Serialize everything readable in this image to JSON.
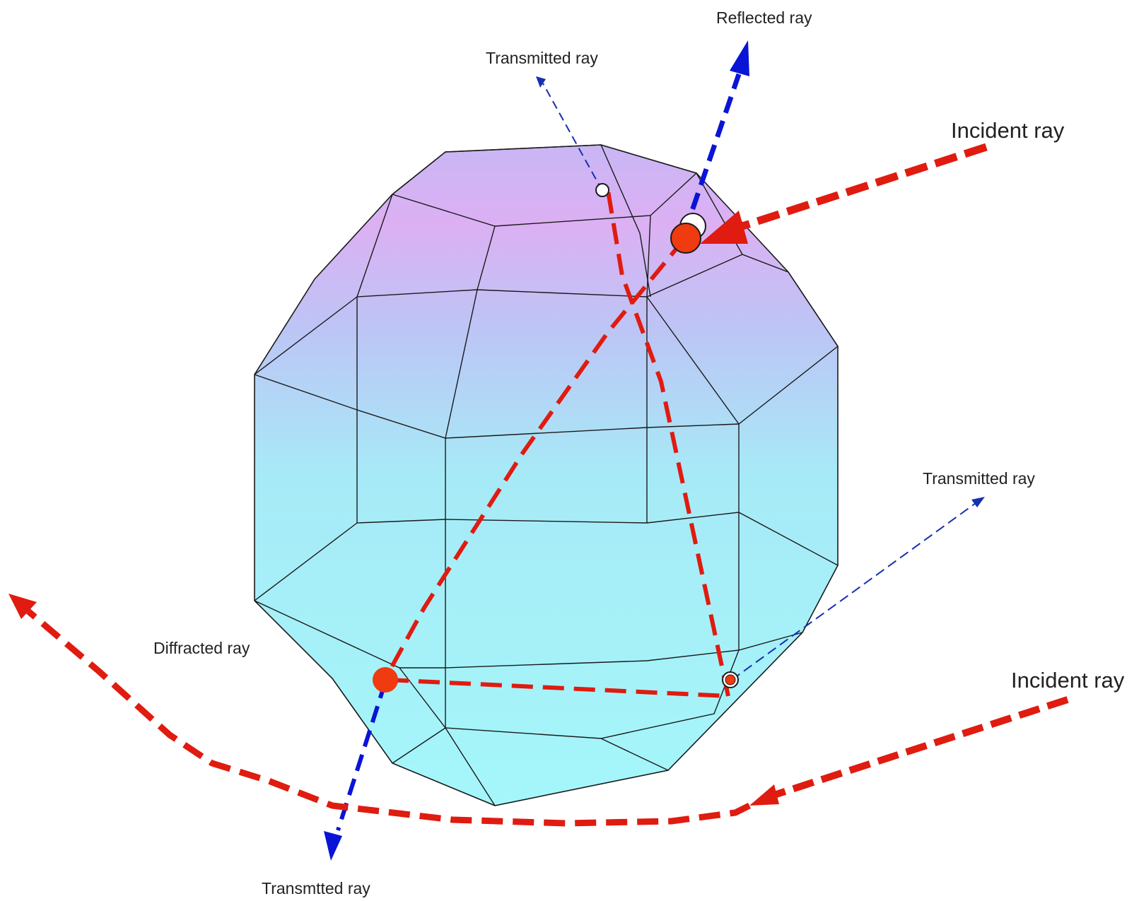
{
  "labels": {
    "reflected": "Reflected ray",
    "transmitted_top": "Transmitted ray",
    "incident_top": "Incident ray",
    "transmitted_right": "Transmitted ray",
    "diffracted": "Diffracted ray",
    "incident_bottom": "Incident ray",
    "transmitted_bottom": "Transmtted ray"
  },
  "colors": {
    "ray_red": "#e01b10",
    "ray_blue": "#0a14d6",
    "ray_thin_blue": "#1530b0",
    "point_fill": "#f03a10",
    "crystal_top": "#e9b4f5",
    "crystal_bottom": "#a4f6fa"
  }
}
